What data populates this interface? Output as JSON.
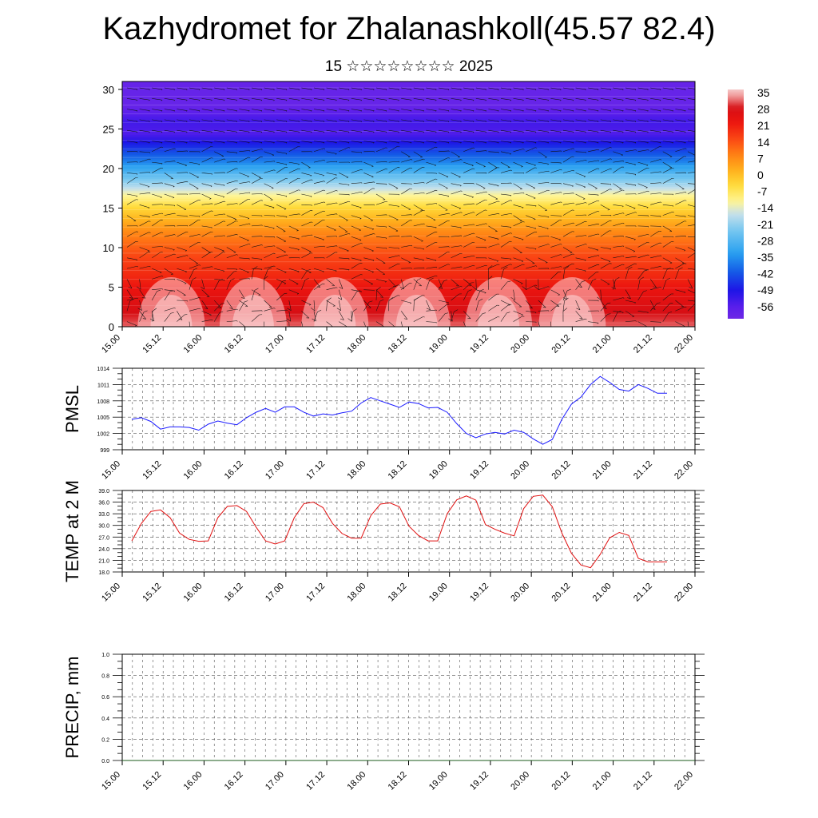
{
  "title": "Kazhydromet for Zhalanashkoll(45.57 82.4)",
  "subtitle": "15 ☆☆☆☆☆☆☆☆ 2025",
  "colors": {
    "pressure_line": "#1a1aff",
    "temperature_line": "#e01010",
    "precip_line": "#1a5a1a",
    "axis": "#000000",
    "grid": "#555555"
  },
  "time_ticks": [
    "15.00",
    "15.12",
    "16.00",
    "16.12",
    "17.00",
    "17.12",
    "18.00",
    "18.12",
    "19.00",
    "19.12",
    "20.00",
    "20.12",
    "21.00",
    "21.12",
    "22.00"
  ],
  "chart_data": [
    {
      "type": "heatmap",
      "name": "vertical-section",
      "x_ticks": [
        "15.00",
        "15.12",
        "16.00",
        "16.12",
        "17.00",
        "17.12",
        "18.00",
        "18.12",
        "19.00",
        "19.12",
        "20.00",
        "20.12",
        "21.00",
        "21.12",
        "22.00"
      ],
      "y_ticks": [
        0,
        5,
        10,
        15,
        20,
        25,
        30
      ],
      "ylim": [
        0,
        31
      ],
      "colorbar": {
        "labels": [
          "35",
          "28",
          "21",
          "14",
          "7",
          "0",
          "-7",
          "-14",
          "-21",
          "-28",
          "-35",
          "-42",
          "-49",
          "-56"
        ],
        "range": [
          -60,
          38
        ]
      },
      "profile": {
        "heights": [
          0,
          3,
          6,
          9,
          12,
          15,
          17,
          19,
          21,
          23,
          24.5,
          26,
          28,
          31
        ],
        "temperature": [
          33,
          28,
          22,
          17,
          9,
          -2,
          -12,
          -24,
          -36,
          -46,
          -54,
          -52,
          -58,
          -58
        ]
      },
      "notes": "Temperature cross-section with wind barbs overlaid"
    },
    {
      "type": "line",
      "name": "PMSL",
      "ylabel": "PMSL",
      "y_ticks": [
        "1014",
        "1011",
        "1008",
        "1005",
        "1002",
        "999"
      ],
      "ylim": [
        999,
        1014
      ],
      "x_ticks": [
        "15.00",
        "15.12",
        "16.00",
        "16.12",
        "17.00",
        "17.12",
        "18.00",
        "18.12",
        "19.00",
        "19.12",
        "20.00",
        "20.12",
        "21.00",
        "21.12",
        "22.00"
      ],
      "series": [
        {
          "values": [
            1004.6,
            1004.9,
            1004.2,
            1002.8,
            1003.2,
            1003.2,
            1003.1,
            1002.6,
            1003.7,
            1004.3,
            1003.9,
            1003.6,
            1004.9,
            1005.9,
            1006.6,
            1005.9,
            1006.9,
            1006.9,
            1005.9,
            1005.2,
            1005.6,
            1005.4,
            1005.8,
            1006.1,
            1007.6,
            1008.6,
            1008.0,
            1007.4,
            1006.8,
            1007.8,
            1007.5,
            1006.7,
            1006.8,
            1005.9,
            1003.8,
            1002.0,
            1001.2,
            1001.9,
            1002.2,
            1001.9,
            1002.6,
            1002.2,
            1001.0,
            1000.0,
            1000.9,
            1004.6,
            1007.4,
            1008.7,
            1011.0,
            1012.5,
            1011.4,
            1010.1,
            1009.8,
            1011.0,
            1010.3,
            1009.4,
            1009.4
          ]
        }
      ]
    },
    {
      "type": "line",
      "name": "TEMP at 2 M",
      "ylabel": "TEMP at 2 M",
      "y_ticks": [
        "39.0",
        "36.0",
        "33.0",
        "30.0",
        "27.0",
        "24.0",
        "21.0",
        "18.0"
      ],
      "ylim": [
        18,
        39
      ],
      "x_ticks": [
        "15.00",
        "15.12",
        "16.00",
        "16.12",
        "17.00",
        "17.12",
        "18.00",
        "18.12",
        "19.00",
        "19.12",
        "20.00",
        "20.12",
        "21.00",
        "21.12",
        "22.00"
      ],
      "series": [
        {
          "values": [
            26.0,
            30.5,
            33.6,
            34.0,
            32.0,
            28.0,
            26.4,
            25.9,
            26.0,
            32.0,
            34.9,
            35.1,
            33.6,
            29.6,
            26.0,
            25.2,
            26.0,
            32.0,
            35.6,
            36.0,
            34.6,
            30.5,
            27.9,
            26.7,
            26.7,
            32.5,
            35.5,
            35.8,
            34.8,
            29.8,
            27.4,
            26.0,
            26.0,
            33.0,
            36.6,
            37.6,
            36.5,
            30.2,
            29.0,
            28.0,
            27.3,
            34.3,
            37.5,
            37.8,
            34.8,
            28.0,
            22.8,
            19.8,
            19.1,
            22.5,
            26.8,
            28.2,
            27.4,
            21.5,
            20.6,
            20.6,
            20.6
          ]
        }
      ]
    },
    {
      "type": "line",
      "name": "PRECIP, mm",
      "ylabel": "PRECIP, mm",
      "y_ticks": [
        "1.0",
        "0.8",
        "0.6",
        "0.4",
        "0.2",
        "0.0"
      ],
      "ylim": [
        0,
        1
      ],
      "x_ticks": [
        "15.00",
        "15.12",
        "16.00",
        "16.12",
        "17.00",
        "17.12",
        "18.00",
        "18.12",
        "19.00",
        "19.12",
        "20.00",
        "20.12",
        "21.00",
        "21.12",
        "22.00"
      ],
      "series": [
        {
          "values": [
            0,
            0,
            0,
            0,
            0,
            0,
            0,
            0,
            0,
            0,
            0,
            0,
            0,
            0,
            0,
            0,
            0,
            0,
            0,
            0,
            0,
            0,
            0,
            0,
            0,
            0,
            0,
            0,
            0,
            0,
            0,
            0,
            0,
            0,
            0,
            0,
            0,
            0,
            0,
            0,
            0,
            0,
            0,
            0,
            0,
            0,
            0,
            0,
            0,
            0,
            0,
            0,
            0,
            0,
            0,
            0,
            0
          ]
        }
      ]
    }
  ]
}
